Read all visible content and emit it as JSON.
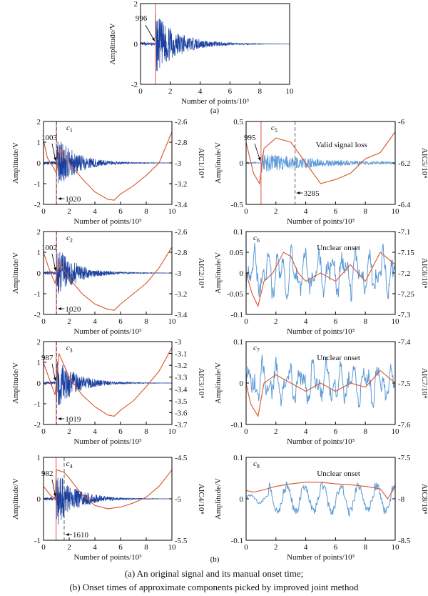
{
  "chart_data": [
    {
      "id": "a",
      "type": "line",
      "panel_label": "(a)",
      "ylabel": "Amplitude/V",
      "xlabel": "Number of points/10³",
      "xlim": [
        0,
        10
      ],
      "xticks": [
        0,
        2,
        4,
        6,
        8,
        10
      ],
      "ylim": [
        -2,
        2
      ],
      "yticks": [
        -2,
        0,
        2
      ],
      "onset_line": 1.0,
      "onset_label": "996",
      "amp": 1.5,
      "noise": 0.02
    },
    {
      "id": "c1",
      "type": "line",
      "component": "c",
      "subscript": "1",
      "ylabel": "Amplitude/V",
      "ylabel2": "AIC1/10⁴",
      "xlabel": "Number of points/10³",
      "xlim": [
        0,
        10
      ],
      "xticks": [
        0,
        2,
        4,
        6,
        8,
        10
      ],
      "ylim": [
        -2,
        2
      ],
      "yticks": [
        -2,
        -1,
        0,
        1,
        2
      ],
      "ylim2": [
        -3.4,
        -2.6
      ],
      "yticks2": [
        -3.4,
        -3.2,
        -3.0,
        -2.8,
        -2.6
      ],
      "manual_line": 1.0,
      "auto_line": 1.02,
      "labels": [
        {
          "text": "1003",
          "kind": "manual"
        },
        {
          "text": "1020",
          "kind": "auto"
        }
      ],
      "amp": 1.4,
      "noise": 0.02,
      "aic": [
        [
          0,
          -2.78
        ],
        [
          0.3,
          -2.95
        ],
        [
          0.8,
          -3.05
        ],
        [
          1.0,
          -3.1
        ],
        [
          1.3,
          -2.85
        ],
        [
          1.6,
          -2.95
        ],
        [
          2.0,
          -3.0
        ],
        [
          3.0,
          -3.15
        ],
        [
          4.0,
          -3.28
        ],
        [
          5.0,
          -3.35
        ],
        [
          5.5,
          -3.36
        ],
        [
          6.0,
          -3.3
        ],
        [
          7.0,
          -3.22
        ],
        [
          8.0,
          -3.12
        ],
        [
          9.0,
          -3.0
        ],
        [
          10.0,
          -2.7
        ]
      ]
    },
    {
      "id": "c5",
      "type": "line",
      "component": "c",
      "subscript": "5",
      "ylabel": "Amplitude/V",
      "ylabel2": "AIC5/10⁴",
      "xlabel": "Number of points/10³",
      "xlim": [
        0,
        10
      ],
      "xticks": [
        0,
        2,
        4,
        6,
        8,
        10
      ],
      "ylim": [
        -0.5,
        0.5
      ],
      "yticks": [
        -0.5,
        0,
        0.5
      ],
      "ylim2": [
        -6.4,
        -6.0
      ],
      "yticks2": [
        -6.4,
        -6.2,
        -6.0
      ],
      "manual_line": 1.0,
      "auto_line": 3.285,
      "labels": [
        {
          "text": "995",
          "kind": "manual"
        },
        {
          "text": "3285",
          "kind": "auto"
        }
      ],
      "annotation": "Valid signal loss",
      "amp": 0.12,
      "noise": 0.01,
      "aic": [
        [
          0,
          -6.1
        ],
        [
          0.5,
          -6.25
        ],
        [
          0.9,
          -6.3
        ],
        [
          1.2,
          -6.13
        ],
        [
          2.0,
          -6.08
        ],
        [
          3.0,
          -6.1
        ],
        [
          4.0,
          -6.2
        ],
        [
          5.0,
          -6.3
        ],
        [
          6.0,
          -6.28
        ],
        [
          7.0,
          -6.25
        ],
        [
          8.0,
          -6.18
        ],
        [
          9.0,
          -6.15
        ],
        [
          10.0,
          -6.05
        ]
      ]
    },
    {
      "id": "c2",
      "type": "line",
      "component": "c",
      "subscript": "2",
      "ylabel": "Amplitude/V",
      "ylabel2": "AIC2/10⁴",
      "xlabel": "Number of points/10³",
      "xlim": [
        0,
        10
      ],
      "xticks": [
        0,
        2,
        4,
        6,
        8,
        10
      ],
      "ylim": [
        -2,
        2
      ],
      "yticks": [
        -2,
        -1,
        0,
        1,
        2
      ],
      "ylim2": [
        -3.4,
        -2.6
      ],
      "yticks2": [
        -3.4,
        -3.2,
        -3.0,
        -2.8,
        -2.6
      ],
      "manual_line": 1.0,
      "auto_line": 1.02,
      "labels": [
        {
          "text": "1002",
          "kind": "manual"
        },
        {
          "text": "1020",
          "kind": "auto"
        }
      ],
      "amp": 1.3,
      "noise": 0.02,
      "aic": [
        [
          0,
          -2.8
        ],
        [
          0.4,
          -2.95
        ],
        [
          0.9,
          -3.1
        ],
        [
          1.2,
          -2.9
        ],
        [
          1.5,
          -2.95
        ],
        [
          2.0,
          -3.05
        ],
        [
          3.0,
          -3.2
        ],
        [
          4.0,
          -3.3
        ],
        [
          5.0,
          -3.35
        ],
        [
          5.5,
          -3.36
        ],
        [
          6.0,
          -3.3
        ],
        [
          7.0,
          -3.2
        ],
        [
          8.0,
          -3.1
        ],
        [
          9.0,
          -2.95
        ],
        [
          10.0,
          -2.75
        ]
      ]
    },
    {
      "id": "c6",
      "type": "line",
      "component": "c",
      "subscript": "6",
      "ylabel": "Amplitude/V",
      "ylabel2": "AIC6/10⁴",
      "xlabel": "Number of points/10³",
      "xlim": [
        0,
        10
      ],
      "xticks": [
        0,
        2,
        4,
        6,
        8,
        10
      ],
      "ylim": [
        -0.1,
        0.1
      ],
      "yticks": [
        -0.1,
        -0.05,
        0,
        0.05,
        0.1
      ],
      "ylim2": [
        -7.3,
        -7.1
      ],
      "yticks2": [
        -7.3,
        -7.25,
        -7.2,
        -7.15,
        -7.1
      ],
      "annotation": "Unclear onset",
      "amp": 0.05,
      "noise": 0.01,
      "aic": [
        [
          0,
          -7.2
        ],
        [
          0.4,
          -7.25
        ],
        [
          0.8,
          -7.28
        ],
        [
          1.2,
          -7.22
        ],
        [
          1.8,
          -7.2
        ],
        [
          2.5,
          -7.15
        ],
        [
          3.0,
          -7.16
        ],
        [
          3.5,
          -7.2
        ],
        [
          4.0,
          -7.22
        ],
        [
          5.0,
          -7.2
        ],
        [
          6.0,
          -7.22
        ],
        [
          7.0,
          -7.18
        ],
        [
          8.0,
          -7.22
        ],
        [
          9.0,
          -7.15
        ],
        [
          10.0,
          -7.18
        ]
      ]
    },
    {
      "id": "c3",
      "type": "line",
      "component": "c",
      "subscript": "3",
      "ylabel": "Amplitude/V",
      "ylabel2": "AIC3/10⁴",
      "xlabel": "Number of points/10³",
      "xlim": [
        0,
        10
      ],
      "xticks": [
        0,
        2,
        4,
        6,
        8,
        10
      ],
      "ylim": [
        -2,
        2
      ],
      "yticks": [
        -2,
        -1,
        0,
        1,
        2
      ],
      "ylim2": [
        -3.7,
        -3.0
      ],
      "yticks2": [
        -3.7,
        -3.6,
        -3.5,
        -3.4,
        -3.3,
        -3.2,
        -3.1,
        -3.0
      ],
      "manual_line": 0.987,
      "auto_line": 1.019,
      "labels": [
        {
          "text": "987",
          "kind": "manual"
        },
        {
          "text": "1019",
          "kind": "auto"
        }
      ],
      "amp": 1.3,
      "noise": 0.02,
      "aic": [
        [
          0,
          -3.18
        ],
        [
          0.4,
          -3.3
        ],
        [
          0.9,
          -3.45
        ],
        [
          1.2,
          -3.1
        ],
        [
          1.6,
          -3.2
        ],
        [
          2.0,
          -3.3
        ],
        [
          3.0,
          -3.45
        ],
        [
          4.0,
          -3.55
        ],
        [
          5.0,
          -3.62
        ],
        [
          5.5,
          -3.63
        ],
        [
          6.0,
          -3.58
        ],
        [
          7.0,
          -3.5
        ],
        [
          8.0,
          -3.38
        ],
        [
          9.0,
          -3.25
        ],
        [
          10.0,
          -3.05
        ]
      ]
    },
    {
      "id": "c7",
      "type": "line",
      "component": "c",
      "subscript": "7",
      "ylabel": "Amplitude/V",
      "ylabel2": "AIC7/10⁴",
      "xlabel": "Number of points/10³",
      "xlim": [
        0,
        10
      ],
      "xticks": [
        0,
        2,
        4,
        6,
        8,
        10
      ],
      "ylim": [
        -0.1,
        0.1
      ],
      "yticks": [
        -0.1,
        0,
        0.1
      ],
      "ylim2": [
        -7.6,
        -7.4
      ],
      "yticks2": [
        -7.6,
        -7.5,
        -7.4
      ],
      "annotation": "Unclear onset",
      "amp": 0.045,
      "noise": 0.005,
      "aic": [
        [
          0,
          -7.5
        ],
        [
          0.3,
          -7.55
        ],
        [
          0.8,
          -7.58
        ],
        [
          1.2,
          -7.5
        ],
        [
          2.0,
          -7.48
        ],
        [
          3.0,
          -7.5
        ],
        [
          4.0,
          -7.52
        ],
        [
          5.0,
          -7.5
        ],
        [
          6.0,
          -7.52
        ],
        [
          7.0,
          -7.5
        ],
        [
          8.0,
          -7.51
        ],
        [
          9.0,
          -7.47
        ],
        [
          10.0,
          -7.5
        ]
      ]
    },
    {
      "id": "c4",
      "type": "line",
      "component": "c",
      "subscript": "4",
      "ylabel": "Amplitude/V",
      "ylabel2": "AIC4/10⁴",
      "xlabel": "Number of points/10³",
      "xlim": [
        0,
        10
      ],
      "xticks": [
        0,
        2,
        4,
        6,
        8,
        10
      ],
      "ylim": [
        -1,
        1
      ],
      "yticks": [
        -1,
        0,
        1
      ],
      "ylim2": [
        -5.5,
        -4.5
      ],
      "yticks2": [
        -5.5,
        -5.0,
        -4.5
      ],
      "manual_line": 0.982,
      "auto_line": 1.61,
      "labels": [
        {
          "text": "982",
          "kind": "manual"
        },
        {
          "text": "1610",
          "kind": "auto"
        }
      ],
      "amp": 0.7,
      "noise": 0.02,
      "aic": [
        [
          0,
          -4.85
        ],
        [
          0.5,
          -4.95
        ],
        [
          0.9,
          -5.0
        ],
        [
          1.0,
          -4.65
        ],
        [
          1.6,
          -4.68
        ],
        [
          2.0,
          -4.75
        ],
        [
          3.0,
          -4.95
        ],
        [
          4.0,
          -5.08
        ],
        [
          5.0,
          -5.12
        ],
        [
          6.0,
          -5.1
        ],
        [
          7.0,
          -5.05
        ],
        [
          8.0,
          -4.98
        ],
        [
          9.0,
          -4.85
        ],
        [
          10.0,
          -4.65
        ]
      ]
    },
    {
      "id": "c8",
      "type": "line",
      "component": "c",
      "subscript": "8",
      "ylabel": "Amplitude/V",
      "ylabel2": "AIC8/10⁴",
      "xlabel": "Number of points/10³",
      "xlim": [
        0,
        10
      ],
      "xticks": [
        0,
        2,
        4,
        6,
        8,
        10
      ],
      "ylim": [
        -0.1,
        0.1
      ],
      "yticks": [
        -0.1,
        0,
        0.1
      ],
      "ylim2": [
        -8.5,
        -7.5
      ],
      "yticks2": [
        -8.5,
        -8.0,
        -7.5
      ],
      "annotation": "Unclear onset",
      "amp": 0.045,
      "noise": 0.005,
      "aic": [
        [
          0,
          -7.9
        ],
        [
          0.5,
          -7.92
        ],
        [
          1.0,
          -7.9
        ],
        [
          2.0,
          -7.85
        ],
        [
          3.0,
          -7.82
        ],
        [
          4.0,
          -7.8
        ],
        [
          5.0,
          -7.8
        ],
        [
          6.0,
          -7.82
        ],
        [
          7.0,
          -7.83
        ],
        [
          8.0,
          -7.85
        ],
        [
          9.0,
          -7.88
        ],
        [
          9.5,
          -8.0
        ],
        [
          10.0,
          -7.85
        ]
      ]
    }
  ],
  "panel_b_label": "(b)",
  "captions": {
    "line1": "(a) An original signal and its manual onset time;",
    "line2": "(b) Onset times of approximate components picked by improved joint method"
  },
  "colors": {
    "signal": "#1a3f9e",
    "signal_light": "#5d9ad6",
    "aic": "#d9552a",
    "manual": "#e0534a",
    "auto": "#5a5a5a"
  }
}
